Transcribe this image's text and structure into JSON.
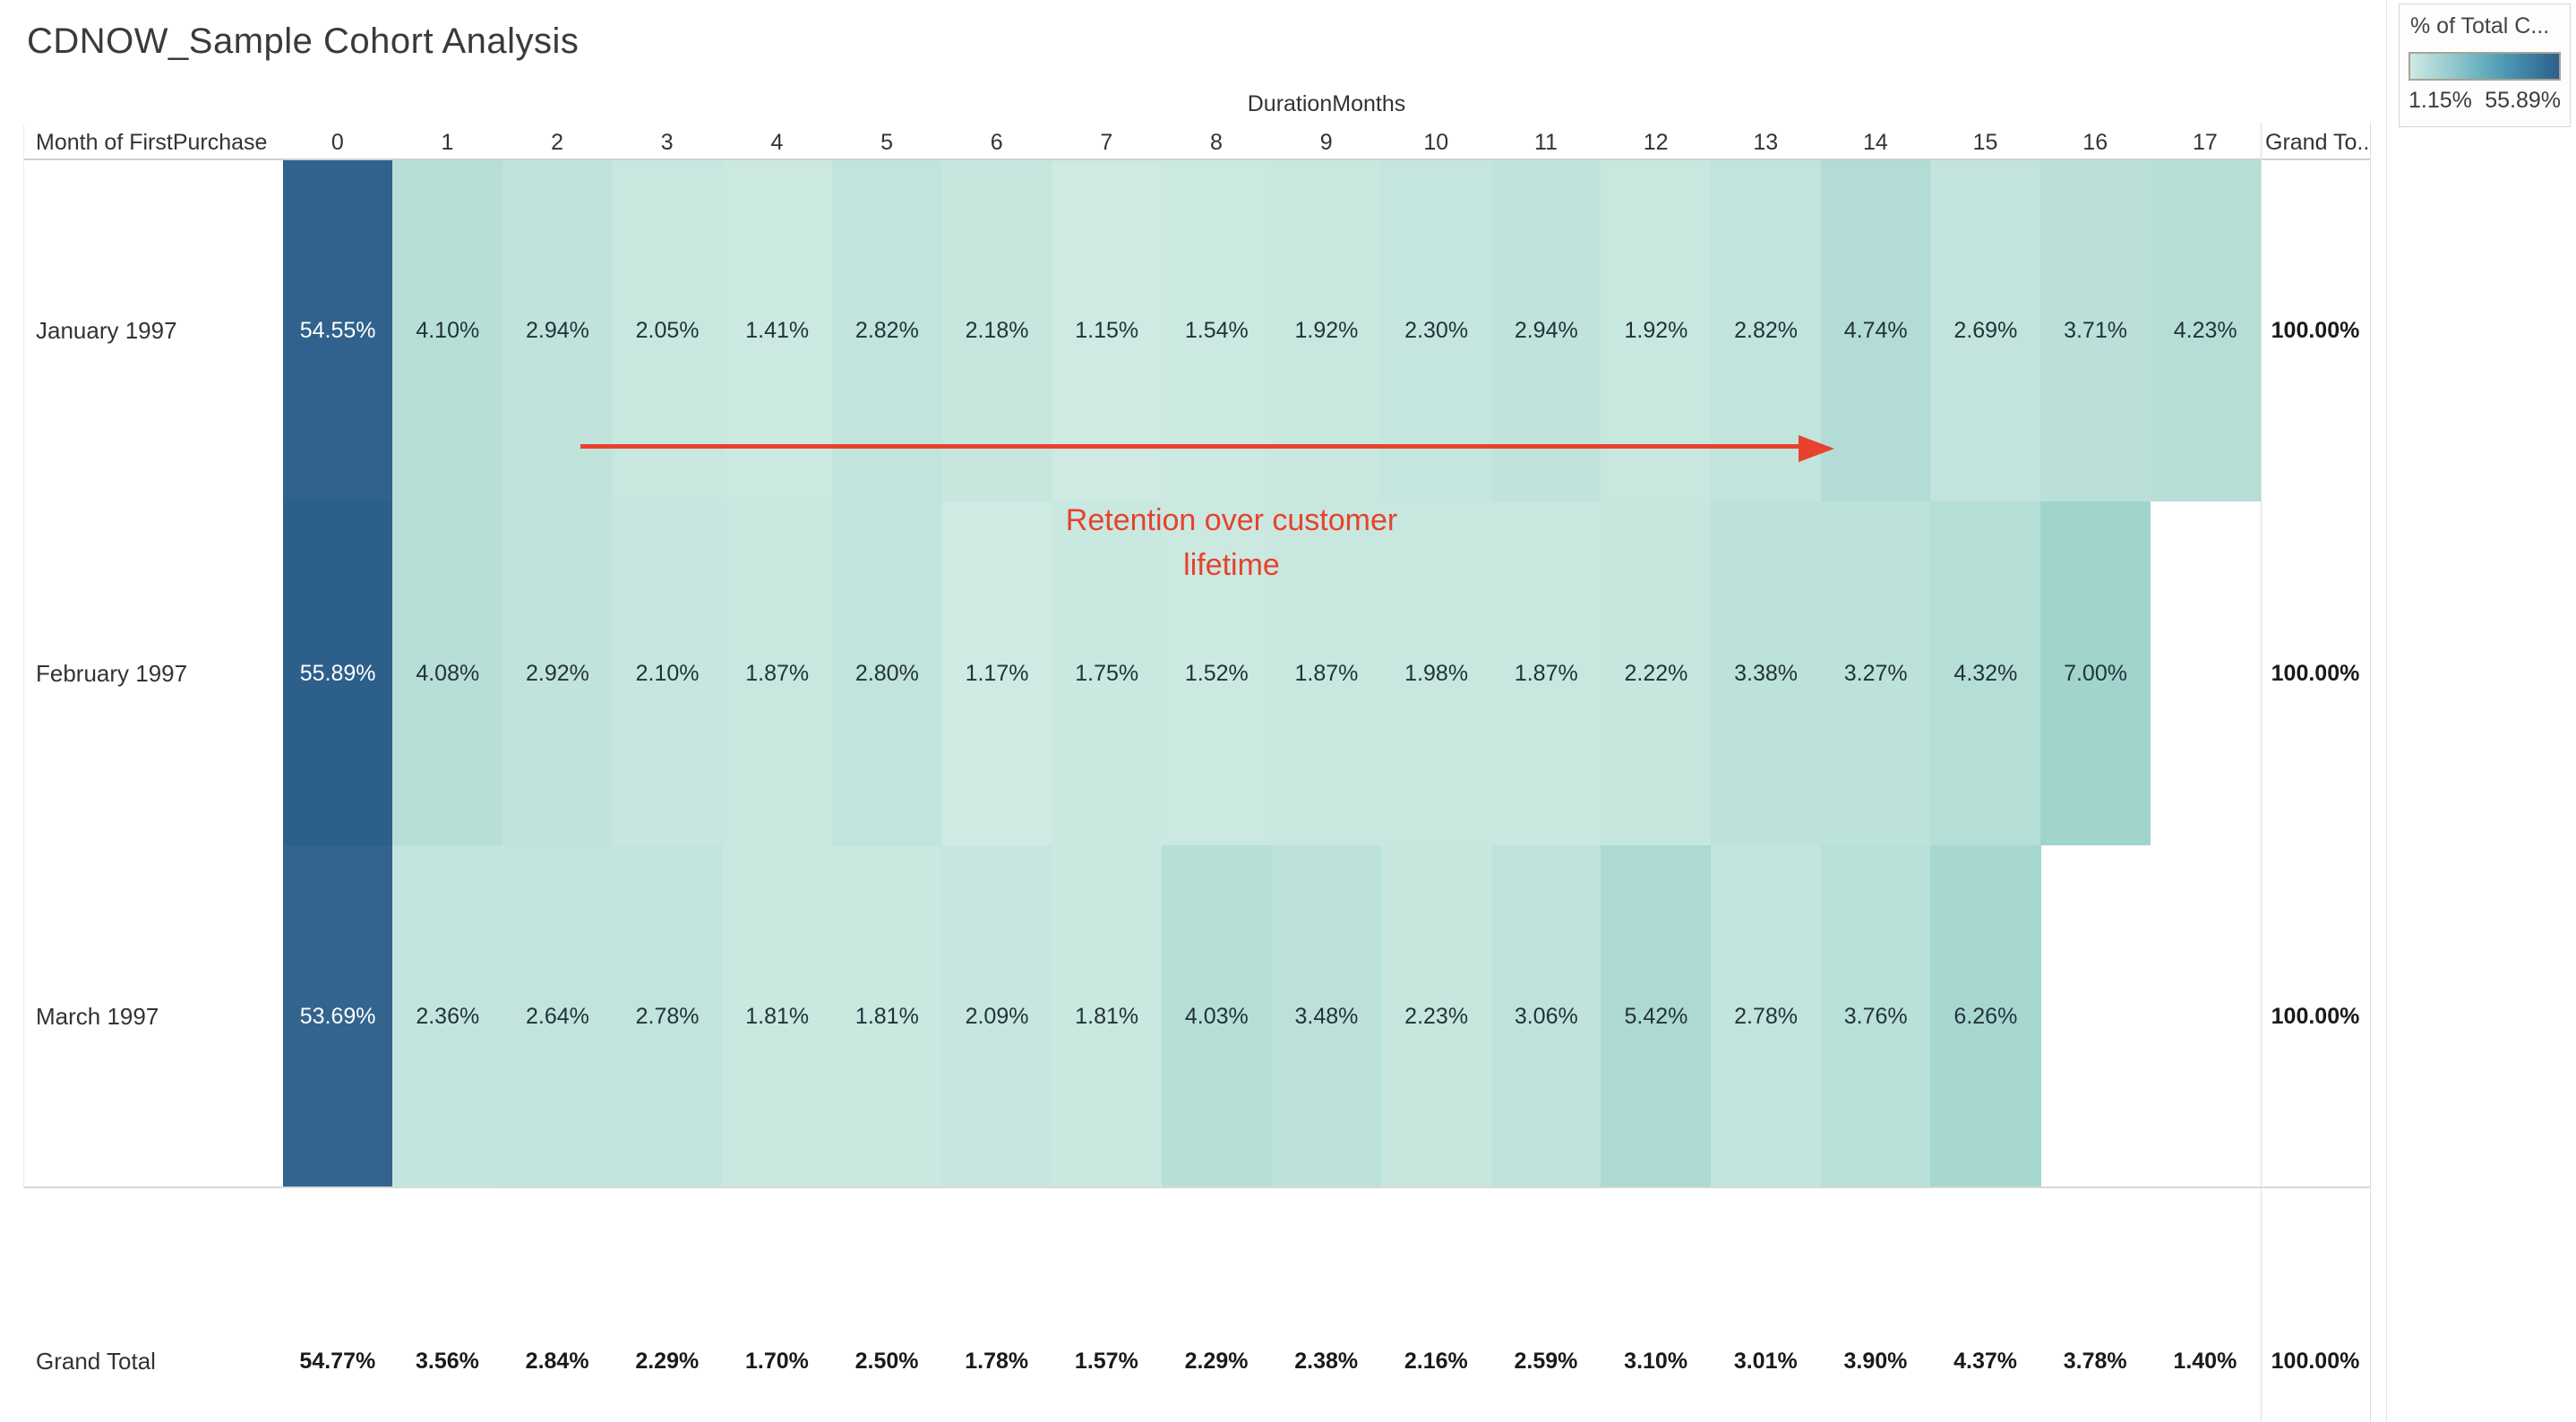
{
  "chart_data": {
    "type": "heatmap",
    "title": "CDNOW_Sample Cohort Analysis",
    "x_axis_label": "DurationMonths",
    "row_dimension": "Month of FirstPurchase",
    "columns": [
      "0",
      "1",
      "2",
      "3",
      "4",
      "5",
      "6",
      "7",
      "8",
      "9",
      "10",
      "11",
      "12",
      "13",
      "14",
      "15",
      "16",
      "17"
    ],
    "grand_total_column_label": "Grand To..",
    "value_format": "percent-2dp",
    "rows": [
      {
        "label": "January 1997",
        "values": [
          54.55,
          4.1,
          2.94,
          2.05,
          1.41,
          2.82,
          2.18,
          1.15,
          1.54,
          1.92,
          2.3,
          2.94,
          1.92,
          2.82,
          4.74,
          2.69,
          3.71,
          4.23
        ],
        "grand_total": "100.00%"
      },
      {
        "label": "February 1997",
        "values": [
          55.89,
          4.08,
          2.92,
          2.1,
          1.87,
          2.8,
          1.17,
          1.75,
          1.52,
          1.87,
          1.98,
          1.87,
          2.22,
          3.38,
          3.27,
          4.32,
          7.0,
          null
        ],
        "grand_total": "100.00%"
      },
      {
        "label": "March 1997",
        "values": [
          53.69,
          2.36,
          2.64,
          2.78,
          1.81,
          1.81,
          2.09,
          1.81,
          4.03,
          3.48,
          2.23,
          3.06,
          5.42,
          2.78,
          3.76,
          6.26,
          null,
          null
        ],
        "grand_total": "100.00%"
      }
    ],
    "grand_total_row": {
      "label": "Grand Total",
      "values": [
        54.77,
        3.56,
        2.84,
        2.29,
        1.7,
        2.5,
        1.78,
        1.57,
        2.29,
        2.38,
        2.16,
        2.59,
        3.1,
        3.01,
        3.9,
        4.37,
        3.78,
        1.4
      ],
      "grand_total": "100.00%"
    },
    "color_scale": {
      "min": 1.15,
      "max": 55.89,
      "stops": [
        {
          "value": 1.15,
          "color": "#ceeae2"
        },
        {
          "value": 7.0,
          "color": "#a0d4cd"
        },
        {
          "value": 55.89,
          "color": "#2d5f8b"
        }
      ]
    },
    "legend_position": "top-right"
  },
  "legend": {
    "title": "% of Total C...",
    "min_label": "1.15%",
    "max_label": "55.89%"
  },
  "annotation": {
    "line1": "Retention over customer",
    "line2": "lifetime"
  },
  "colors": {
    "accent_red": "#e8412e",
    "heat_dark_blue": "#2d5f8b",
    "heat_light_teal": "#ceeae2",
    "heat_mid_teal": "#a0d4cd",
    "gridline": "#cfcfcf"
  }
}
